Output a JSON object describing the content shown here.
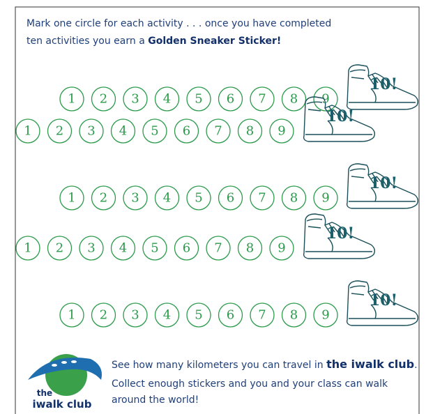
{
  "header": {
    "line1": "Mark one circle for each activity . . . once you have completed",
    "line2": "ten activities you earn a",
    "highlight": "Golden Sneaker Sticker!"
  },
  "rows": [
    {
      "circles": [
        "1",
        "2",
        "3",
        "4",
        "5",
        "6",
        "7",
        "8",
        "9"
      ],
      "sneaker": "10!"
    },
    {
      "circles": [
        "1",
        "2",
        "3",
        "4",
        "5",
        "6",
        "7",
        "8",
        "9"
      ],
      "sneaker": "10!"
    },
    {
      "circles": [
        "1",
        "2",
        "3",
        "4",
        "5",
        "6",
        "7",
        "8",
        "9"
      ],
      "sneaker": "10!"
    },
    {
      "circles": [
        "1",
        "2",
        "3",
        "4",
        "5",
        "6",
        "7",
        "8",
        "9"
      ],
      "sneaker": "10!"
    },
    {
      "circles": [
        "1",
        "2",
        "3",
        "4",
        "5",
        "6",
        "7",
        "8",
        "9"
      ],
      "sneaker": "10!"
    }
  ],
  "footer": {
    "logo_top": "the",
    "logo_bottom": "iwalk club",
    "line1": "See how many kilometers you can travel in",
    "brand": "the iwalk club",
    "line1_end": ".",
    "line2": "Collect enough stickers and you and your class can walk",
    "line3": "around the world!"
  }
}
